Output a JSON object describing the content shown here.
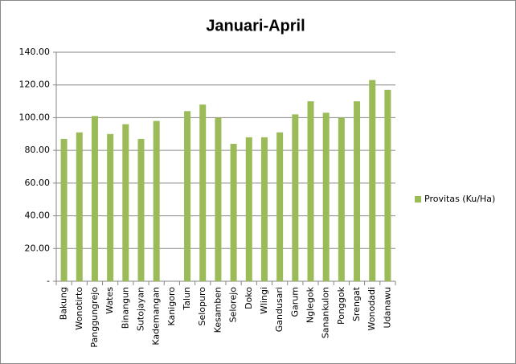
{
  "chart_data": {
    "type": "bar",
    "title": "Januari-April",
    "categories": [
      "Bakung",
      "Wonotirto",
      "Panggungrejo",
      "Wates",
      "Binangun",
      "Sutojayan",
      "Kademangan",
      "Kanigoro",
      "Talun",
      "Selopuro",
      "Kesamben",
      "Selorejo",
      "Doko",
      "Wlingi",
      "Gandusari",
      "Garum",
      "Nglegok",
      "Sanankulon",
      "Ponggok",
      "Srengat",
      "Wonodadi",
      "Udanawu"
    ],
    "series": [
      {
        "name": "Provitas (Ku/Ha)",
        "color": "#9bbb59",
        "values": [
          87,
          91,
          101,
          90,
          96,
          87,
          98,
          null,
          104,
          108,
          100,
          84,
          88,
          88,
          91,
          102,
          110,
          103,
          100,
          110,
          123,
          117
        ]
      }
    ],
    "ylim": [
      0,
      140
    ],
    "yticks": [
      {
        "value": 0,
        "label": "-"
      },
      {
        "value": 20,
        "label": "20.00"
      },
      {
        "value": 40,
        "label": "40.00"
      },
      {
        "value": 60,
        "label": "60.00"
      },
      {
        "value": 80,
        "label": "80.00"
      },
      {
        "value": 100,
        "label": "100.00"
      },
      {
        "value": 120,
        "label": "120.00"
      },
      {
        "value": 140,
        "label": "140.00"
      }
    ],
    "grid": true,
    "legend": "right"
  }
}
